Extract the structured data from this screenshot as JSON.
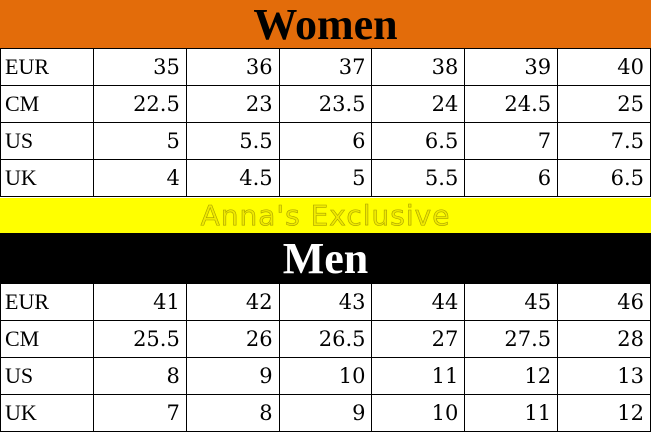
{
  "women": {
    "title": "Women",
    "rows": [
      {
        "label": "EUR",
        "values": [
          "35",
          "36",
          "37",
          "38",
          "39",
          "40"
        ]
      },
      {
        "label": "CM",
        "values": [
          "22.5",
          "23",
          "23.5",
          "24",
          "24.5",
          "25"
        ]
      },
      {
        "label": "US",
        "values": [
          "5",
          "5.5",
          "6",
          "6.5",
          "7",
          "7.5"
        ]
      },
      {
        "label": "UK",
        "values": [
          "4",
          "4.5",
          "5",
          "5.5",
          "6",
          "6.5"
        ]
      }
    ]
  },
  "watermark": "Anna's Exclusive",
  "men": {
    "title": "Men",
    "rows": [
      {
        "label": "EUR",
        "values": [
          "41",
          "42",
          "43",
          "44",
          "45",
          "46"
        ]
      },
      {
        "label": "CM",
        "values": [
          "25.5",
          "26",
          "26.5",
          "27",
          "27.5",
          "28"
        ]
      },
      {
        "label": "US",
        "values": [
          "8",
          "9",
          "10",
          "11",
          "12",
          "13"
        ]
      },
      {
        "label": "UK",
        "values": [
          "7",
          "8",
          "9",
          "10",
          "11",
          "12"
        ]
      }
    ]
  },
  "colors": {
    "women_header": "#E36C0A",
    "watermark_band": "#FFFF00",
    "men_header": "#000000"
  }
}
